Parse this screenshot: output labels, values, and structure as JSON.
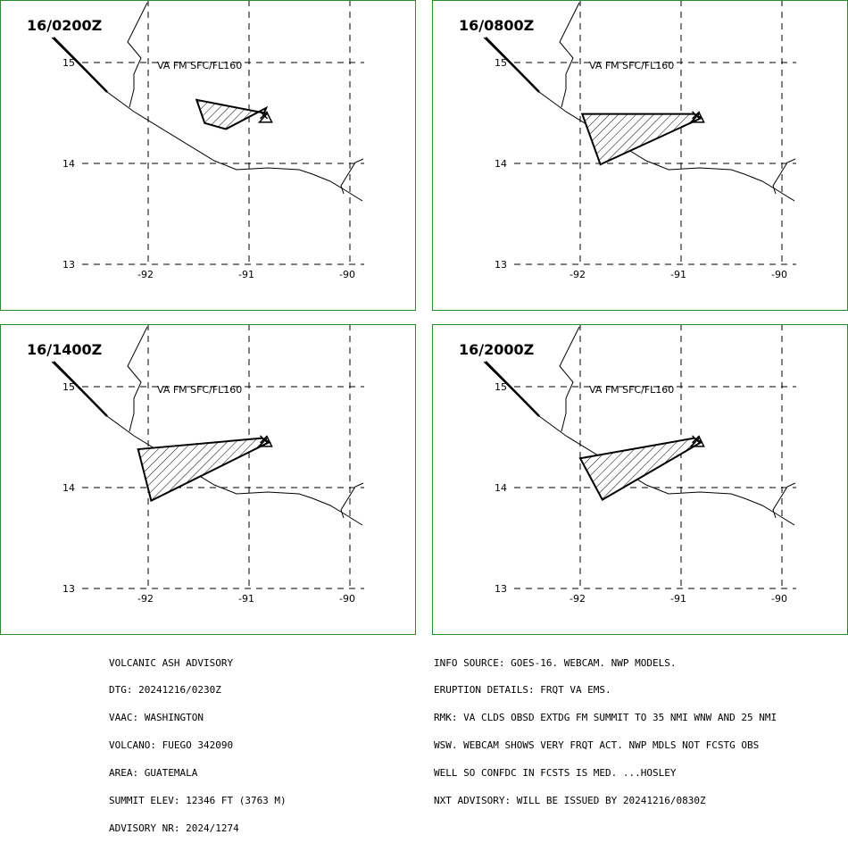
{
  "panels": [
    {
      "valid_time": "16/0200Z",
      "va_label": "VA FM SFC/FL160",
      "ash_polygon": [
        [
          -91.52,
          14.63
        ],
        [
          -90.85,
          14.5
        ],
        [
          -90.83,
          14.55
        ],
        [
          -91.23,
          14.34
        ],
        [
          -91.44,
          14.4
        ]
      ]
    },
    {
      "valid_time": "16/0800Z",
      "va_label": "VA FM SFC/FL160",
      "ash_polygon": [
        [
          -91.98,
          14.49
        ],
        [
          -90.87,
          14.49
        ],
        [
          -90.8,
          14.45
        ],
        [
          -91.8,
          13.99
        ]
      ]
    },
    {
      "valid_time": "16/1400Z",
      "va_label": "VA FM SFC/FL160",
      "ash_polygon": [
        [
          -92.1,
          14.38
        ],
        [
          -90.87,
          14.49
        ],
        [
          -90.8,
          14.45
        ],
        [
          -91.97,
          13.87
        ]
      ]
    },
    {
      "valid_time": "16/2000Z",
      "va_label": "VA FM SFC/FL160",
      "ash_polygon": [
        [
          -92.0,
          14.29
        ],
        [
          -90.87,
          14.49
        ],
        [
          -90.8,
          14.45
        ],
        [
          -91.78,
          13.88
        ]
      ]
    }
  ],
  "map": {
    "lon_ticks": [
      "-92",
      "-91",
      "-90"
    ],
    "lat_ticks": [
      "15",
      "14",
      "13"
    ],
    "lon_values": [
      -92,
      -91,
      -90
    ],
    "lat_values": [
      15,
      14,
      13
    ],
    "volcano": {
      "name": "FUEGO",
      "lat": 14.47,
      "lon": -90.88
    }
  },
  "advisory_left": [
    "VOLCANIC ASH ADVISORY",
    "DTG: 20241216/0230Z",
    "VAAC: WASHINGTON",
    "VOLCANO: FUEGO 342090",
    "AREA: GUATEMALA",
    "SUMMIT ELEV: 12346 FT (3763 M)",
    "ADVISORY NR: 2024/1274"
  ],
  "advisory_right": [
    "INFO SOURCE: GOES-16. WEBCAM. NWP MODELS.",
    "ERUPTION DETAILS: FRQT VA EMS.",
    "RMK: VA CLDS OBSD EXTDG FM SUMMIT TO 35 NMI WNW AND 25 NMI",
    "WSW. WEBCAM SHOWS VERY FRQT ACT. NWP MDLS NOT FCSTG OBS",
    "WELL SO CONFDC IN FCSTS IS MED. ...HOSLEY",
    "NXT ADVISORY: WILL BE ISSUED BY 20241216/0830Z"
  ],
  "colors": {
    "frame": "#2c8a2c",
    "ink": "#000000",
    "background": "#ffffff"
  }
}
